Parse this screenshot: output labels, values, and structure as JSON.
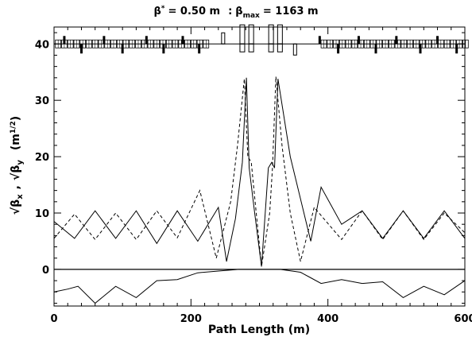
{
  "chart_data": {
    "type": "line",
    "title": {
      "beta_symbol": "β",
      "beta_star_sup": "*",
      "beta_star_value": "= 0.50 m",
      "separator": ":",
      "beta_max_sub": "max",
      "beta_max_value": "= 1163 m"
    },
    "xlabel": "Path Length (m)",
    "ylabel": {
      "x_part": "x",
      "y_part": "y",
      "sep": ",",
      "units": "(m",
      "units_exp": "1/2",
      "units_close": ")"
    },
    "xlim": [
      0,
      600
    ],
    "ylim": [
      -6.5,
      43
    ],
    "x_ticks": [
      0,
      200,
      400,
      600
    ],
    "y_ticks": [
      0,
      10,
      20,
      30,
      40
    ],
    "x_tick_labels": [
      "0",
      "200",
      "400",
      "600"
    ],
    "y_tick_labels": [
      "0",
      "10",
      "20",
      "30",
      "40"
    ],
    "grid": false,
    "legend": "none",
    "series": [
      {
        "style": "solid",
        "x": [
          0,
          30,
          60,
          90,
          120,
          150,
          180,
          210,
          240,
          252,
          265,
          275,
          281,
          285,
          293,
          303,
          313,
          318,
          322,
          327,
          345,
          375,
          390,
          420,
          450,
          480,
          510,
          540,
          570,
          600
        ],
        "y": [
          8.5,
          5.5,
          10.4,
          5.5,
          10.4,
          4.6,
          10.4,
          5.0,
          11.0,
          1.4,
          9.0,
          19.0,
          34.0,
          18.0,
          10.0,
          0.5,
          18.0,
          19.0,
          18.0,
          33.8,
          20.0,
          5.0,
          14.6,
          8.0,
          10.4,
          5.5,
          10.4,
          5.5,
          10.4,
          5.5
        ]
      },
      {
        "style": "dashed",
        "x": [
          0,
          30,
          60,
          90,
          120,
          150,
          180,
          213,
          237,
          258,
          268,
          278,
          283,
          288,
          303,
          315,
          319,
          324,
          333,
          345,
          360,
          380,
          420,
          450,
          480,
          510,
          540,
          570,
          600
        ],
        "y": [
          5.5,
          9.8,
          5.3,
          10.0,
          5.3,
          10.4,
          5.6,
          14.0,
          2.0,
          12.0,
          22.0,
          33.8,
          20.0,
          19.0,
          0.5,
          10.0,
          18.0,
          34.2,
          22.0,
          10.0,
          1.4,
          11.0,
          5.3,
          10.4,
          5.3,
          10.4,
          5.3,
          10.0,
          6.5
        ]
      },
      {
        "style": "solid",
        "x": [
          0,
          20,
          35,
          60,
          90,
          120,
          150,
          180,
          210,
          240,
          270,
          300,
          330,
          360,
          375,
          390,
          420,
          450,
          480,
          510,
          540,
          570,
          600
        ],
        "y": [
          -4.0,
          -3.5,
          -3.0,
          -6.0,
          -3.0,
          -5.0,
          -2.0,
          -1.8,
          -0.6,
          -0.3,
          0.0,
          0.0,
          0.0,
          -0.5,
          -1.5,
          -2.5,
          -1.8,
          -2.5,
          -2.2,
          -5.0,
          -3.0,
          -4.5,
          -2.0
        ]
      }
    ],
    "annotations": {
      "zero_line": 0,
      "lattice_baseline": 40,
      "lattice_elements": [
        {
          "type": "quad_up",
          "x": 15
        },
        {
          "type": "quad_down",
          "x": 40
        },
        {
          "type": "quad_up",
          "x": 73
        },
        {
          "type": "quad_down",
          "x": 100
        },
        {
          "type": "quad_up",
          "x": 135
        },
        {
          "type": "quad_down",
          "x": 160
        },
        {
          "type": "quad_up",
          "x": 188
        },
        {
          "type": "quad_down",
          "x": 212
        },
        {
          "type": "final_focus_up",
          "x": 247
        },
        {
          "type": "triplet_block",
          "x": 275
        },
        {
          "type": "triplet_block",
          "x": 288
        },
        {
          "type": "triplet_block",
          "x": 317
        },
        {
          "type": "triplet_block",
          "x": 330
        },
        {
          "type": "final_focus_down",
          "x": 352
        },
        {
          "type": "quad_up",
          "x": 388
        },
        {
          "type": "quad_down",
          "x": 415
        },
        {
          "type": "quad_up",
          "x": 445
        },
        {
          "type": "quad_down",
          "x": 470
        },
        {
          "type": "quad_up",
          "x": 500
        },
        {
          "type": "quad_down",
          "x": 535
        },
        {
          "type": "quad_up",
          "x": 560
        },
        {
          "type": "quad_down",
          "x": 588
        }
      ]
    }
  }
}
